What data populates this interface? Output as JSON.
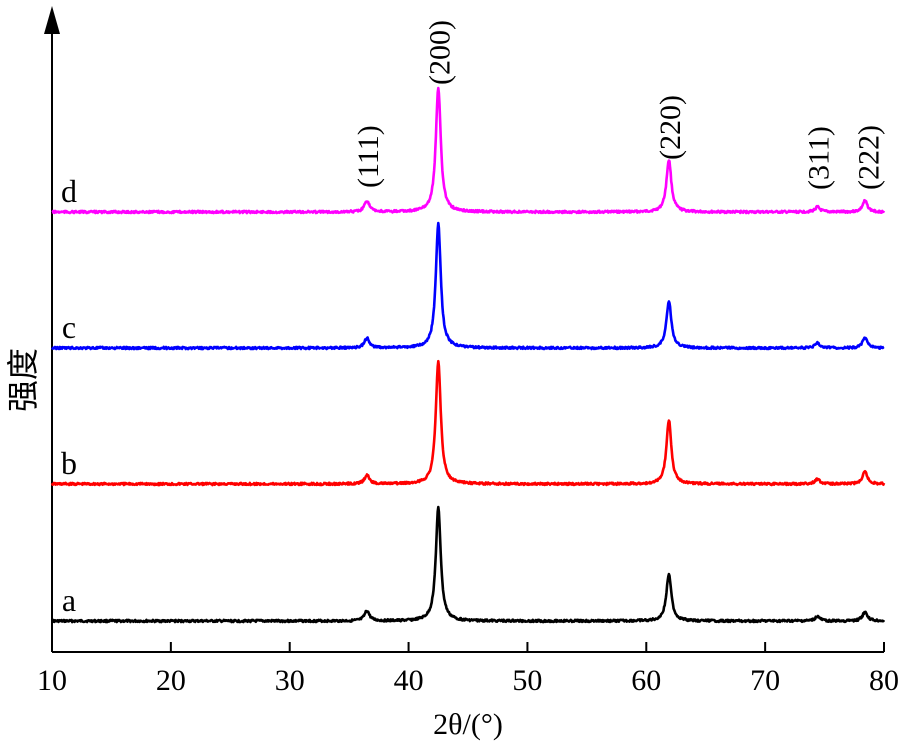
{
  "chart_data": {
    "type": "line",
    "title": "",
    "xlabel": "2θ/(°)",
    "ylabel": "强度",
    "xlim": [
      10,
      80
    ],
    "x_ticks": [
      "10",
      "20",
      "30",
      "40",
      "50",
      "60",
      "70",
      "80"
    ],
    "y_ticks_shown": false,
    "stacked_offset_traces": true,
    "peak_width_deg": 0.25,
    "series": [
      {
        "name": "a",
        "color": "#000000",
        "peaks": [
          {
            "x": 36.5,
            "h": 0.09
          },
          {
            "x": 42.5,
            "h": 1.0
          },
          {
            "x": 61.9,
            "h": 0.42
          },
          {
            "x": 74.4,
            "h": 0.04
          },
          {
            "x": 78.4,
            "h": 0.08
          }
        ]
      },
      {
        "name": "b",
        "color": "#ff0000",
        "peaks": [
          {
            "x": 36.5,
            "h": 0.07
          },
          {
            "x": 42.5,
            "h": 1.0
          },
          {
            "x": 61.9,
            "h": 0.52
          },
          {
            "x": 74.4,
            "h": 0.04
          },
          {
            "x": 78.4,
            "h": 0.1
          }
        ]
      },
      {
        "name": "c",
        "color": "#0000ff",
        "peaks": [
          {
            "x": 36.5,
            "h": 0.08
          },
          {
            "x": 42.5,
            "h": 1.0
          },
          {
            "x": 61.9,
            "h": 0.38
          },
          {
            "x": 74.4,
            "h": 0.04
          },
          {
            "x": 78.4,
            "h": 0.08
          }
        ]
      },
      {
        "name": "d",
        "color": "#ff00ff",
        "peaks": [
          {
            "x": 36.5,
            "h": 0.09
          },
          {
            "x": 42.5,
            "h": 1.0
          },
          {
            "x": 61.9,
            "h": 0.42
          },
          {
            "x": 74.4,
            "h": 0.04
          },
          {
            "x": 78.4,
            "h": 0.09
          }
        ]
      }
    ],
    "annotations": [
      {
        "text": "(111)",
        "x": 36.6
      },
      {
        "text": "(200)",
        "x": 42.6
      },
      {
        "text": "(220)",
        "x": 62.0
      },
      {
        "text": "(311)",
        "x": 74.5
      },
      {
        "text": "(222)",
        "x": 78.7
      }
    ]
  }
}
